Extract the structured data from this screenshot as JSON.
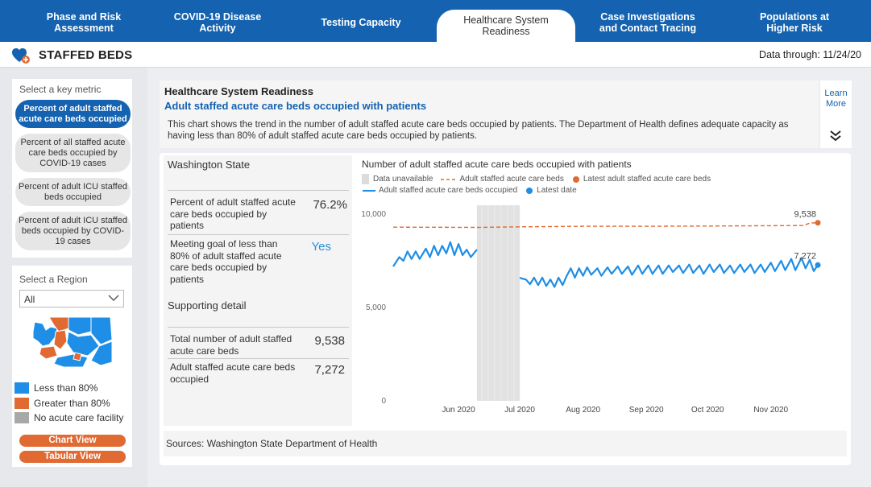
{
  "nav": {
    "tabs": [
      {
        "label": "Phase and Risk\nAssessment",
        "active": false
      },
      {
        "label": "COVID-19 Disease\nActivity",
        "active": false
      },
      {
        "label": "Testing Capacity",
        "active": false
      },
      {
        "label": "Healthcare System\nReadiness",
        "active": true
      },
      {
        "label": "Case Investigations\nand Contact Tracing",
        "active": false
      },
      {
        "label": "Populations at\nHigher Risk",
        "active": false
      }
    ]
  },
  "header": {
    "icon": "heart-plus-icon",
    "title": "STAFFED BEDS",
    "data_through": "Data through: 11/24/20"
  },
  "metrics": {
    "caption": "Select a key metric",
    "items": [
      {
        "label": "Percent of adult staffed acute care beds occupied",
        "active": true
      },
      {
        "label": "Percent of all staffed acute care beds occupied by COVID-19 cases",
        "active": false
      },
      {
        "label": "Percent of adult ICU staffed beds occupied",
        "active": false
      },
      {
        "label": "Percent of adult ICU staffed beds occupied by COVID-19 cases",
        "active": false
      }
    ]
  },
  "region": {
    "caption": "Select a Region",
    "selected": "All",
    "legend": [
      {
        "label": "Less than 80%",
        "color": "#1e8ee6"
      },
      {
        "label": "Greater than 80%",
        "color": "#e06a32"
      },
      {
        "label": "No acute care facility",
        "color": "#a8a8a8"
      }
    ],
    "chart_view_label": "Chart View",
    "tabular_view_label": "Tabular View"
  },
  "description": {
    "heading": "Healthcare System Readiness",
    "subheading": "Adult staffed acute care beds occupied with patients",
    "text": "This chart shows the trend in the number of adult staffed acute care beds occupied by patients. The Department of Health defines adequate capacity as having less than 80% of adult staffed acute care beds occupied by patients.",
    "learn_more": "Learn More"
  },
  "stats": {
    "region_title": "Washington State",
    "rows": [
      {
        "label": "Percent of adult staffed acute care beds occupied by patients",
        "value": "76.2%"
      },
      {
        "label": "Meeting goal of less than 80% of adult staffed acute care beds occupied by patients",
        "value": "Yes"
      }
    ],
    "supporting_title": "Supporting detail",
    "supporting_rows": [
      {
        "label": "Total number of adult staffed acute care beds",
        "value": "9,538"
      },
      {
        "label": "Adult staffed acute care beds occupied",
        "value": "7,272"
      }
    ]
  },
  "sources": "Sources: Washington State Department of Health",
  "chart_data": {
    "type": "line",
    "title": "Number of adult staffed acute care beds occupied with patients",
    "legend": {
      "data_unavailable": "Data unavailable",
      "total_beds": "Adult staffed acute care beds",
      "latest_total": "Latest adult staffed acute care beds",
      "occupied": "Adult staffed acute care beds occupied",
      "latest_date": "Latest date"
    },
    "colors": {
      "total": "#e06a32",
      "occupied": "#1e8ee6",
      "gap": "#e2e2e2"
    },
    "y_ticks": [
      "10,000",
      "5,000",
      "0"
    ],
    "ylim": [
      0,
      10000
    ],
    "x_ticks": [
      "Jun 2020",
      "Jul 2020",
      "Aug 2020",
      "Sep 2020",
      "Oct 2020",
      "Nov 2020"
    ],
    "x_range": [
      "2020-04-30",
      "2020-11-24"
    ],
    "data_unavailable_range": [
      "2020-06-10",
      "2020-07-01"
    ],
    "total_series": [
      {
        "date": "2020-04-30",
        "value": 9300
      },
      {
        "date": "2020-06-10",
        "value": 9290
      },
      {
        "date": "2020-07-01",
        "value": 9320
      },
      {
        "date": "2020-08-01",
        "value": 9350
      },
      {
        "date": "2020-09-01",
        "value": 9350
      },
      {
        "date": "2020-10-01",
        "value": 9360
      },
      {
        "date": "2020-11-01",
        "value": 9380
      },
      {
        "date": "2020-11-17",
        "value": 9390
      },
      {
        "date": "2020-11-20",
        "value": 9520
      },
      {
        "date": "2020-11-24",
        "value": 9538
      }
    ],
    "occupied_series": [
      {
        "date": "2020-04-30",
        "value": 7200
      },
      {
        "date": "2020-05-03",
        "value": 7700
      },
      {
        "date": "2020-05-05",
        "value": 7500
      },
      {
        "date": "2020-05-07",
        "value": 8000
      },
      {
        "date": "2020-05-09",
        "value": 7600
      },
      {
        "date": "2020-05-11",
        "value": 8000
      },
      {
        "date": "2020-05-13",
        "value": 7600
      },
      {
        "date": "2020-05-16",
        "value": 8150
      },
      {
        "date": "2020-05-18",
        "value": 7700
      },
      {
        "date": "2020-05-20",
        "value": 8300
      },
      {
        "date": "2020-05-22",
        "value": 7800
      },
      {
        "date": "2020-05-24",
        "value": 8300
      },
      {
        "date": "2020-05-26",
        "value": 7900
      },
      {
        "date": "2020-05-28",
        "value": 8500
      },
      {
        "date": "2020-05-30",
        "value": 7800
      },
      {
        "date": "2020-06-01",
        "value": 8400
      },
      {
        "date": "2020-06-03",
        "value": 7800
      },
      {
        "date": "2020-06-05",
        "value": 8100
      },
      {
        "date": "2020-06-07",
        "value": 7700
      },
      {
        "date": "2020-06-10",
        "value": 8100
      },
      {
        "date": "2020-07-01",
        "value": 6600
      },
      {
        "date": "2020-07-02",
        "value": 6550
      },
      {
        "date": "2020-07-04",
        "value": 6500
      },
      {
        "date": "2020-07-06",
        "value": 6250
      },
      {
        "date": "2020-07-08",
        "value": 6600
      },
      {
        "date": "2020-07-10",
        "value": 6200
      },
      {
        "date": "2020-07-12",
        "value": 6600
      },
      {
        "date": "2020-07-14",
        "value": 6150
      },
      {
        "date": "2020-07-16",
        "value": 6500
      },
      {
        "date": "2020-07-18",
        "value": 6100
      },
      {
        "date": "2020-07-20",
        "value": 6600
      },
      {
        "date": "2020-07-22",
        "value": 6200
      },
      {
        "date": "2020-07-24",
        "value": 6700
      },
      {
        "date": "2020-07-26",
        "value": 7100
      },
      {
        "date": "2020-07-28",
        "value": 6600
      },
      {
        "date": "2020-07-30",
        "value": 7100
      },
      {
        "date": "2020-08-01",
        "value": 6700
      },
      {
        "date": "2020-08-03",
        "value": 7150
      },
      {
        "date": "2020-08-05",
        "value": 6750
      },
      {
        "date": "2020-08-08",
        "value": 7100
      },
      {
        "date": "2020-08-10",
        "value": 6700
      },
      {
        "date": "2020-08-13",
        "value": 7150
      },
      {
        "date": "2020-08-15",
        "value": 6800
      },
      {
        "date": "2020-08-18",
        "value": 7200
      },
      {
        "date": "2020-08-20",
        "value": 6800
      },
      {
        "date": "2020-08-23",
        "value": 7200
      },
      {
        "date": "2020-08-25",
        "value": 6750
      },
      {
        "date": "2020-08-28",
        "value": 7250
      },
      {
        "date": "2020-08-30",
        "value": 6800
      },
      {
        "date": "2020-09-02",
        "value": 7250
      },
      {
        "date": "2020-09-04",
        "value": 6800
      },
      {
        "date": "2020-09-07",
        "value": 7250
      },
      {
        "date": "2020-09-09",
        "value": 6800
      },
      {
        "date": "2020-09-12",
        "value": 7250
      },
      {
        "date": "2020-09-14",
        "value": 6900
      },
      {
        "date": "2020-09-17",
        "value": 7250
      },
      {
        "date": "2020-09-19",
        "value": 6850
      },
      {
        "date": "2020-09-22",
        "value": 7300
      },
      {
        "date": "2020-09-24",
        "value": 6850
      },
      {
        "date": "2020-09-27",
        "value": 7250
      },
      {
        "date": "2020-09-29",
        "value": 6800
      },
      {
        "date": "2020-10-02",
        "value": 7300
      },
      {
        "date": "2020-10-04",
        "value": 6900
      },
      {
        "date": "2020-10-07",
        "value": 7300
      },
      {
        "date": "2020-10-09",
        "value": 6850
      },
      {
        "date": "2020-10-12",
        "value": 7250
      },
      {
        "date": "2020-10-14",
        "value": 6850
      },
      {
        "date": "2020-10-17",
        "value": 7300
      },
      {
        "date": "2020-10-19",
        "value": 6900
      },
      {
        "date": "2020-10-22",
        "value": 7300
      },
      {
        "date": "2020-10-24",
        "value": 6850
      },
      {
        "date": "2020-10-27",
        "value": 7300
      },
      {
        "date": "2020-10-29",
        "value": 6900
      },
      {
        "date": "2020-11-01",
        "value": 7400
      },
      {
        "date": "2020-11-03",
        "value": 6950
      },
      {
        "date": "2020-11-06",
        "value": 7500
      },
      {
        "date": "2020-11-08",
        "value": 7000
      },
      {
        "date": "2020-11-11",
        "value": 7600
      },
      {
        "date": "2020-11-13",
        "value": 7000
      },
      {
        "date": "2020-11-16",
        "value": 7650
      },
      {
        "date": "2020-11-18",
        "value": 7100
      },
      {
        "date": "2020-11-20",
        "value": 7550
      },
      {
        "date": "2020-11-22",
        "value": 6950
      },
      {
        "date": "2020-11-24",
        "value": 7272
      }
    ],
    "end_labels": {
      "total": "9,538",
      "occupied": "7,272"
    }
  }
}
